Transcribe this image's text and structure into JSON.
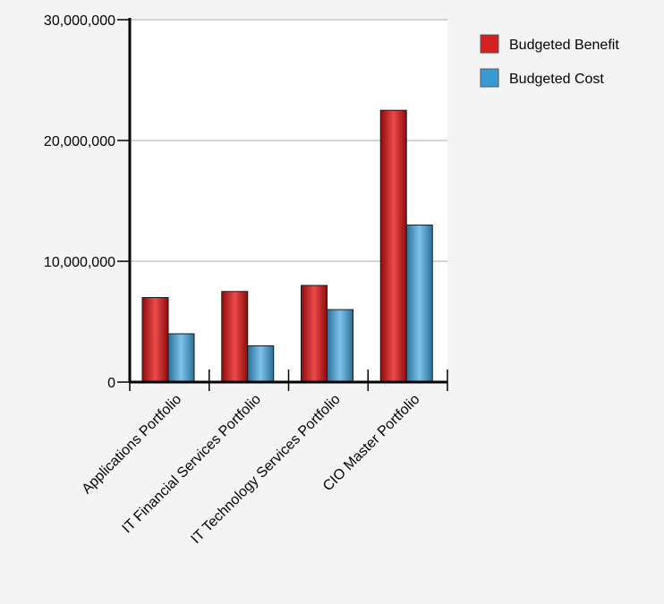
{
  "chart_data": {
    "type": "bar",
    "categories": [
      "Applications Portfolio",
      "IT Financial Services Portfolio",
      "IT Technology Services Portfolio",
      "CIO Master Portfolio"
    ],
    "series": [
      {
        "name": "Budgeted Benefit",
        "color": "#d42020",
        "values": [
          7000000,
          7500000,
          8000000,
          22500000
        ]
      },
      {
        "name": "Budgeted Cost",
        "color": "#3a9bd4",
        "values": [
          4000000,
          3000000,
          6000000,
          13000000
        ]
      }
    ],
    "ylim": [
      0,
      30000000
    ],
    "yticks": [
      0,
      10000000,
      20000000,
      30000000
    ],
    "ytick_labels": [
      "0",
      "10,000,000",
      "20,000,000",
      "30,000,000"
    ],
    "grid": true,
    "legend_position": "top-right"
  }
}
